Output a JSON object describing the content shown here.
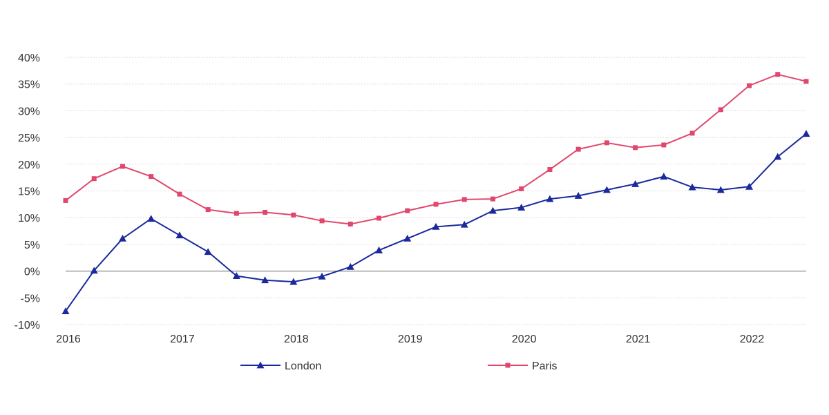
{
  "chart_data": {
    "type": "line",
    "title": "",
    "xlabel": "",
    "ylabel": "",
    "x": [
      2016.0,
      2016.25,
      2016.5,
      2016.75,
      2017.0,
      2017.25,
      2017.5,
      2017.75,
      2018.0,
      2018.25,
      2018.5,
      2018.75,
      2019.0,
      2019.25,
      2019.5,
      2019.75,
      2020.0,
      2020.25,
      2020.5,
      2020.75,
      2021.0,
      2021.25,
      2021.5,
      2021.75,
      2022.0,
      2022.25,
      2022.5
    ],
    "xlim": [
      2016.0,
      2022.5
    ],
    "xticks": [
      "2016",
      "2017",
      "2018",
      "2019",
      "2020",
      "2021",
      "2022"
    ],
    "ylim": [
      -10,
      40
    ],
    "yticks": [
      "-10%",
      "-5%",
      "0%",
      "5%",
      "10%",
      "15%",
      "20%",
      "25%",
      "30%",
      "35%",
      "40%"
    ],
    "grid": true,
    "legend_position": "bottom",
    "series": [
      {
        "name": "London",
        "color": "#1a2a9c",
        "marker": "triangle",
        "values": [
          -7.5,
          0.1,
          6.1,
          9.8,
          6.7,
          3.6,
          -0.9,
          -1.7,
          -2.0,
          -1.0,
          0.8,
          3.9,
          6.1,
          8.3,
          8.7,
          11.3,
          11.9,
          13.5,
          14.1,
          15.2,
          16.3,
          17.7,
          15.7,
          15.2,
          15.8,
          21.4,
          25.7
        ]
      },
      {
        "name": "Paris",
        "color": "#e0476b",
        "marker": "square",
        "values": [
          13.2,
          17.3,
          19.6,
          17.7,
          14.4,
          11.5,
          10.8,
          11.0,
          10.5,
          9.4,
          8.8,
          9.9,
          11.3,
          12.5,
          13.4,
          13.5,
          15.4,
          19.0,
          22.8,
          24.0,
          23.1,
          23.6,
          25.8,
          30.2,
          34.7,
          36.8,
          35.5
        ]
      }
    ]
  }
}
